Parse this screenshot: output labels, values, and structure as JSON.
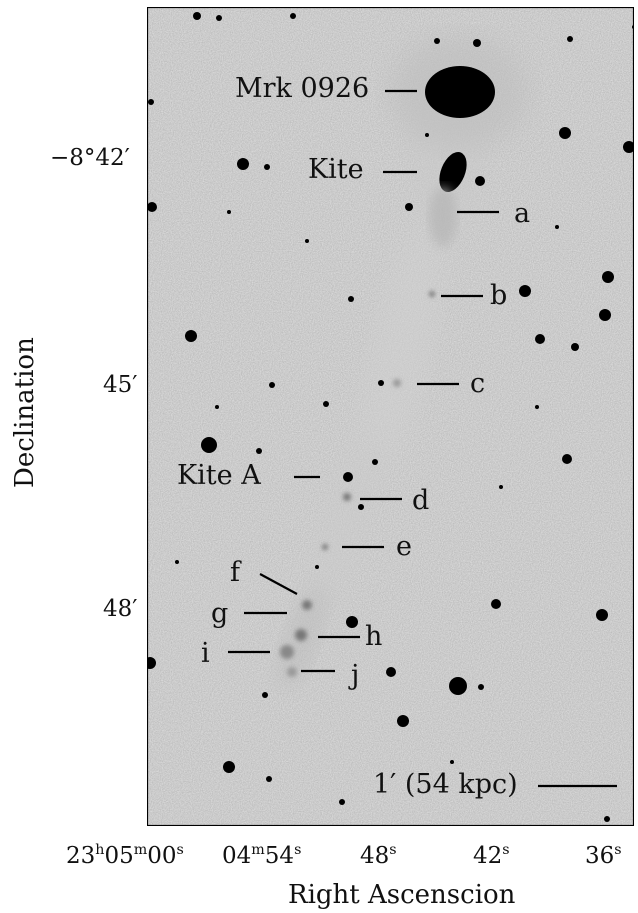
{
  "image": {
    "object_labels": {
      "mrk": "Mrk 0926",
      "kite": "Kite",
      "kite_a": "Kite A",
      "a": "a",
      "b": "b",
      "c": "c",
      "d": "d",
      "e": "e",
      "f": "f",
      "g": "g",
      "h": "h",
      "i": "i",
      "j": "j"
    },
    "scale_bar": {
      "label": "1′ (54 kpc)"
    },
    "y_axis": {
      "title": "Declination",
      "ticks": [
        "−8°42′",
        "45′",
        "48′"
      ]
    },
    "x_axis": {
      "title": "Right Ascenscion",
      "ticks": [
        {
          "main": "23",
          "h": "h",
          "m_val": "05",
          "m": "m",
          "s_val": "00",
          "s": "s"
        },
        {
          "main": "04",
          "m": "m",
          "s_val": "54",
          "s": "s"
        },
        {
          "main": "48",
          "s": "s"
        },
        {
          "main": "42",
          "s": "s"
        },
        {
          "main": "36",
          "s": "s"
        }
      ]
    }
  }
}
